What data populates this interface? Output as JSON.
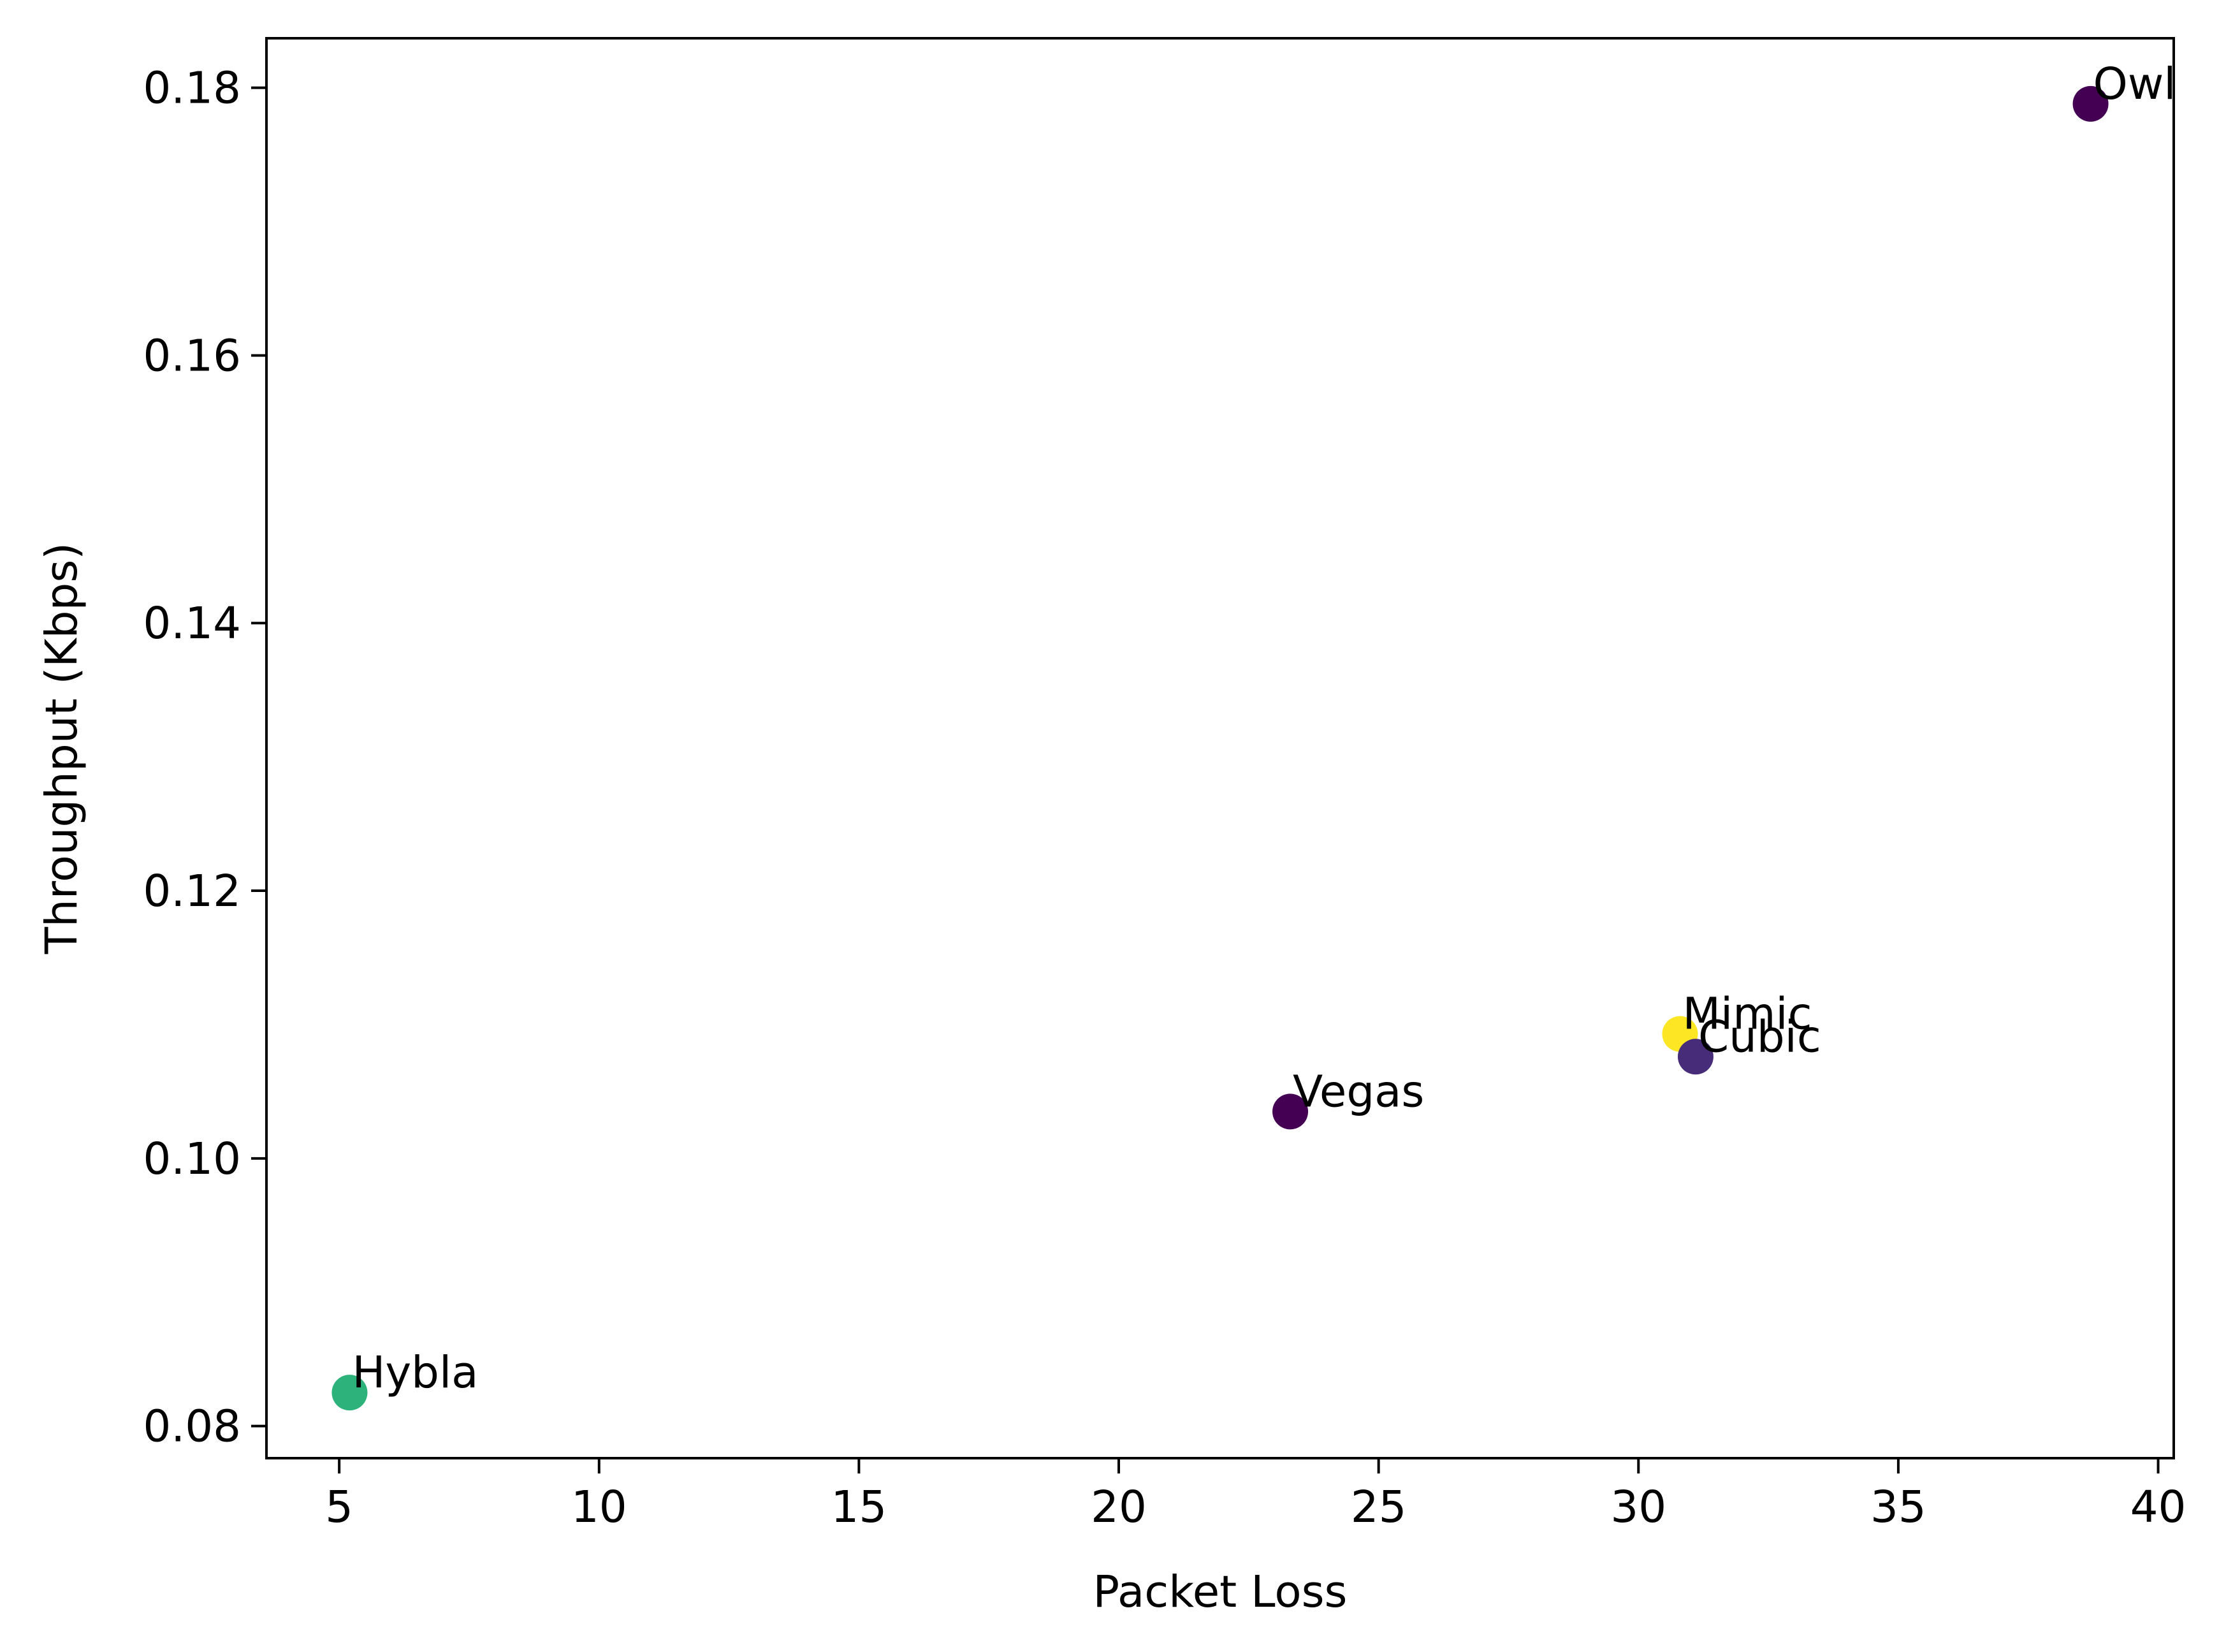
{
  "chart_data": {
    "type": "scatter",
    "title": "",
    "xlabel": "Packet Loss",
    "ylabel": "Throughput (Kbps)",
    "xlim": [
      3.6,
      40.3
    ],
    "ylim": [
      0.0776,
      0.1837
    ],
    "xticks": [
      5,
      10,
      15,
      20,
      25,
      30,
      35,
      40
    ],
    "yticks": [
      0.08,
      0.1,
      0.12,
      0.14,
      0.16,
      0.18
    ],
    "xtick_labels": [
      "5",
      "10",
      "15",
      "20",
      "25",
      "30",
      "35",
      "40"
    ],
    "ytick_labels": [
      "0.08",
      "0.10",
      "0.12",
      "0.14",
      "0.16",
      "0.18"
    ],
    "grid": false,
    "points": [
      {
        "label": "Owl",
        "x": 38.7,
        "y": 0.1788,
        "color": "#440154"
      },
      {
        "label": "Mimic",
        "x": 30.8,
        "y": 0.1093,
        "color": "#fde725"
      },
      {
        "label": "Cubic",
        "x": 31.1,
        "y": 0.1076,
        "color": "#472c7a"
      },
      {
        "label": "Vegas",
        "x": 23.3,
        "y": 0.1035,
        "color": "#440154"
      },
      {
        "label": "Hybla",
        "x": 5.2,
        "y": 0.0825,
        "color": "#2eb27c"
      }
    ]
  }
}
